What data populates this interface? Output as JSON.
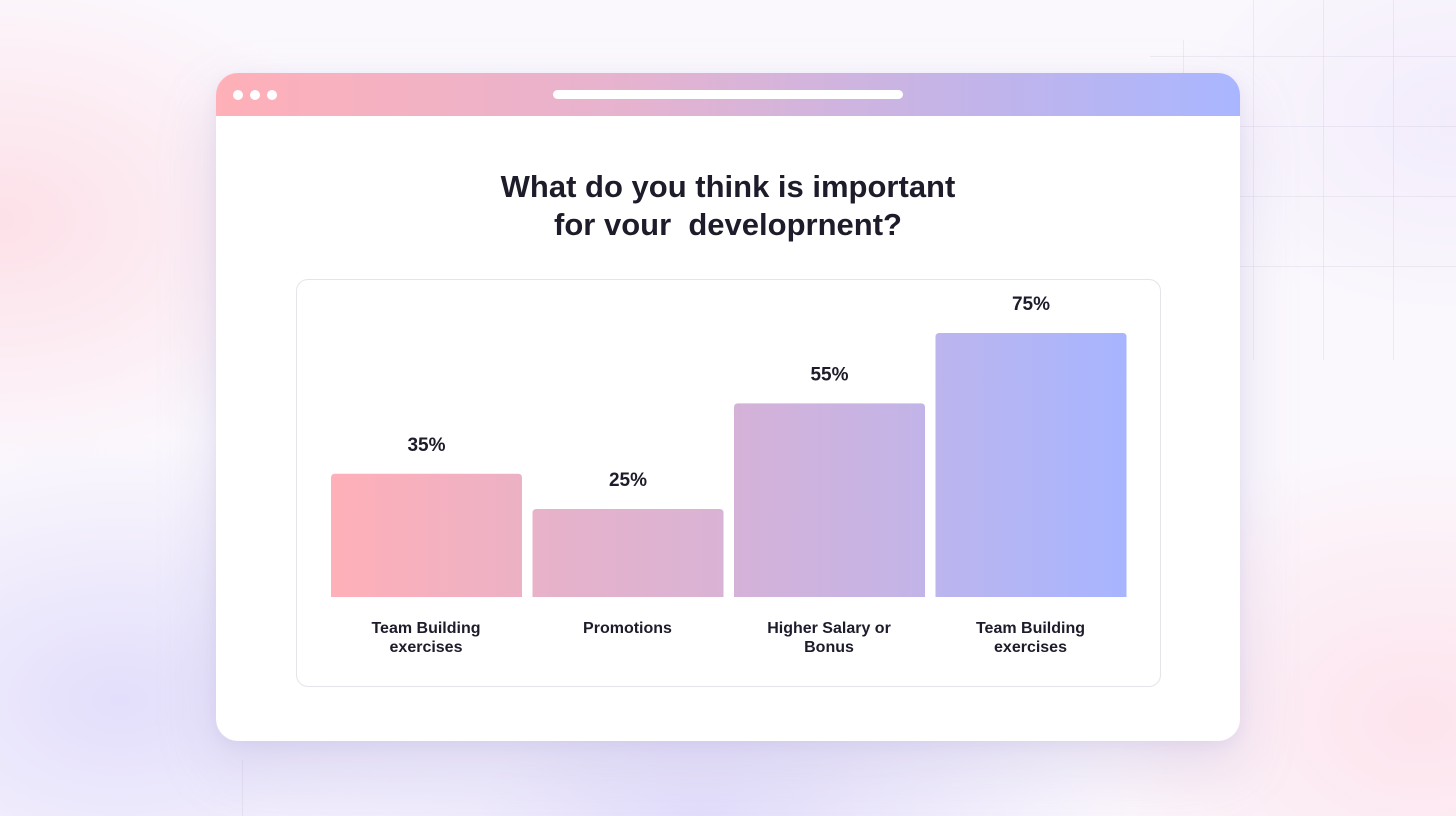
{
  "window": {
    "titlebar_gradient": [
      "#ffb0b8",
      "#e6b3cf",
      "#c6b4e6",
      "#a9b6ff"
    ]
  },
  "chart_data": {
    "type": "bar",
    "title_lines": [
      "What do you think is important",
      "for vour  developrnent?"
    ],
    "categories": [
      [
        "Team Building",
        "exercises"
      ],
      [
        "Promotions"
      ],
      [
        "Higher Salary or",
        "Bonus"
      ],
      [
        "Team Building",
        "exercises"
      ]
    ],
    "values": [
      35,
      25,
      55,
      75
    ],
    "value_labels": [
      "35%",
      "25%",
      "55%",
      "75%"
    ],
    "ylim": [
      0,
      75
    ],
    "xlabel": "",
    "ylabel": "",
    "grid": false,
    "bar_colors": [
      [
        "#ffb0b8",
        "#ecb1c5"
      ],
      [
        "#e8b2c9",
        "#d9b3d5"
      ],
      [
        "#d5b2d8",
        "#c2b4e8"
      ],
      [
        "#bcb5ee",
        "#a7b5ff"
      ]
    ]
  }
}
